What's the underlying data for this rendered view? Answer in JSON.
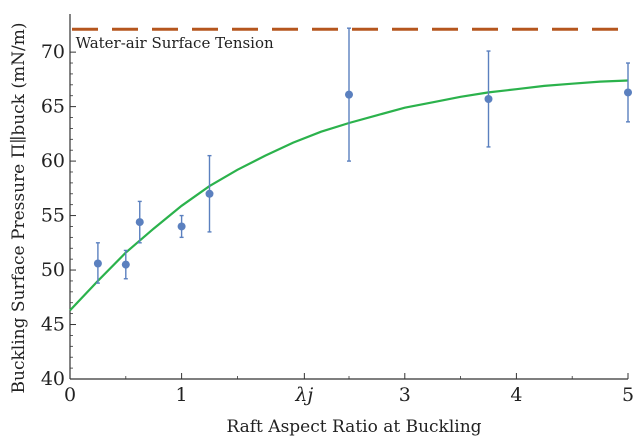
{
  "chart_data": {
    "type": "scatter",
    "title": "",
    "xlabel": "Raft Aspect Ratio at Buckling",
    "ylabel": "Buckling Surface Pressure Π∥buck (mN/m)",
    "xlim": [
      0,
      5
    ],
    "ylim": [
      40,
      73.5
    ],
    "x_ticks": [
      {
        "value": 0,
        "label": "0"
      },
      {
        "value": 1,
        "label": "1"
      },
      {
        "value": 2.1,
        "label": "λj"
      },
      {
        "value": 3,
        "label": "3"
      },
      {
        "value": 4,
        "label": "4"
      },
      {
        "value": 5,
        "label": "5"
      }
    ],
    "y_ticks": [
      {
        "value": 40,
        "label": "40"
      },
      {
        "value": 45,
        "label": "45"
      },
      {
        "value": 50,
        "label": "50"
      },
      {
        "value": 55,
        "label": "55"
      },
      {
        "value": 60,
        "label": "60"
      },
      {
        "value": 65,
        "label": "65"
      },
      {
        "value": 70,
        "label": "70"
      }
    ],
    "grid": false,
    "series": [
      {
        "points": [
          {
            "x": 0.25,
            "y": 50.6,
            "low": 48.8,
            "high": 52.5
          },
          {
            "x": 0.5,
            "y": 50.5,
            "low": 49.2,
            "high": 51.8
          },
          {
            "x": 0.625,
            "y": 54.4,
            "low": 52.5,
            "high": 56.3
          },
          {
            "x": 1.0,
            "y": 54.0,
            "low": 53.0,
            "high": 55.0
          },
          {
            "x": 1.25,
            "y": 57.0,
            "low": 53.5,
            "high": 60.5
          },
          {
            "x": 2.5,
            "y": 66.1,
            "low": 60.0,
            "high": 72.2
          },
          {
            "x": 3.75,
            "y": 65.7,
            "low": 61.3,
            "high": 70.1
          },
          {
            "x": 5.0,
            "y": 66.3,
            "low": 63.6,
            "high": 69.0
          }
        ],
        "color": "#5b80bf"
      },
      {
        "type": "line",
        "color": "#2bb24c",
        "x": [
          0,
          0.25,
          0.5,
          0.75,
          1.0,
          1.25,
          1.5,
          1.75,
          2.0,
          2.25,
          2.5,
          2.75,
          3.0,
          3.25,
          3.5,
          3.75,
          4.0,
          4.25,
          4.5,
          4.75,
          5.0
        ],
        "y": [
          46.3,
          49.0,
          51.6,
          53.8,
          55.9,
          57.7,
          59.2,
          60.5,
          61.7,
          62.7,
          63.5,
          64.2,
          64.9,
          65.4,
          65.9,
          66.3,
          66.6,
          66.9,
          67.1,
          67.3,
          67.4
        ]
      },
      {
        "type": "reference-line",
        "color": "#b5561e",
        "y": 72.1,
        "style": "dashed"
      }
    ],
    "annotations": [
      {
        "text": "Water-air Surface Tension",
        "x": 0.05,
        "y": 70.4
      }
    ]
  }
}
